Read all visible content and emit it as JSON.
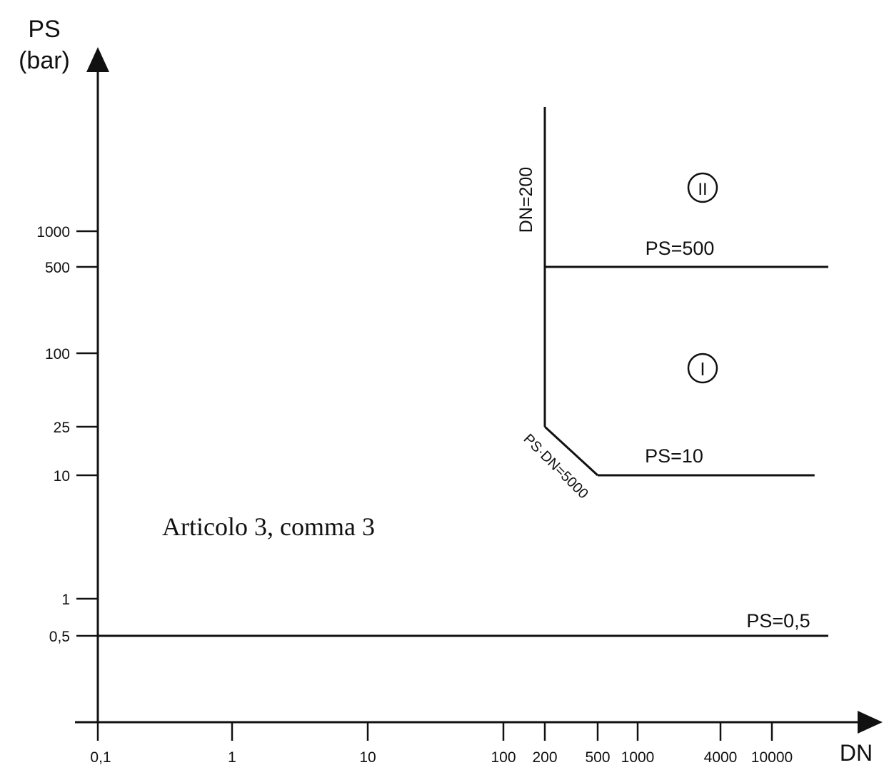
{
  "chart_data": {
    "type": "line",
    "title": "",
    "ylabel": "PS",
    "yunit": "(bar)",
    "xlabel": "DN",
    "y_scale": "log",
    "x_scale": "log",
    "x_ticks": [
      {
        "value": 0.1,
        "label": "0,1"
      },
      {
        "value": 1,
        "label": "1"
      },
      {
        "value": 10,
        "label": "10"
      },
      {
        "value": 100,
        "label": "100"
      },
      {
        "value": 200,
        "label": "200"
      },
      {
        "value": 500,
        "label": "500"
      },
      {
        "value": 1000,
        "label": "1000"
      },
      {
        "value": 4000,
        "label": "4000"
      },
      {
        "value": 10000,
        "label": "10000"
      }
    ],
    "y_ticks": [
      {
        "value": 0.5,
        "label": "0,5"
      },
      {
        "value": 1,
        "label": "1"
      },
      {
        "value": 10,
        "label": "10"
      },
      {
        "value": 25,
        "label": "25"
      },
      {
        "value": 100,
        "label": "100"
      },
      {
        "value": 500,
        "label": "500"
      },
      {
        "value": 1000,
        "label": "1000"
      }
    ],
    "boundaries": [
      {
        "label": "PS=0,5",
        "points": [
          [
            0.1,
            0.5
          ],
          [
            25000,
            0.5
          ]
        ]
      },
      {
        "label": "PS=10",
        "points": [
          [
            500,
            10
          ],
          [
            20000,
            10
          ]
        ]
      },
      {
        "label": "PS=500",
        "points": [
          [
            200,
            500
          ],
          [
            25000,
            500
          ]
        ]
      },
      {
        "label": "DN=200",
        "points": [
          [
            200,
            25
          ],
          [
            200,
            10000
          ]
        ]
      },
      {
        "label": "PS·DN=5000",
        "points": [
          [
            200,
            25
          ],
          [
            500,
            10
          ]
        ]
      }
    ],
    "regions": [
      {
        "label": "I",
        "x": 3500,
        "y": 100
      },
      {
        "label": "II",
        "x": 3500,
        "y": 1600
      }
    ],
    "annotation": "Articolo 3, comma 3",
    "grid": false
  }
}
